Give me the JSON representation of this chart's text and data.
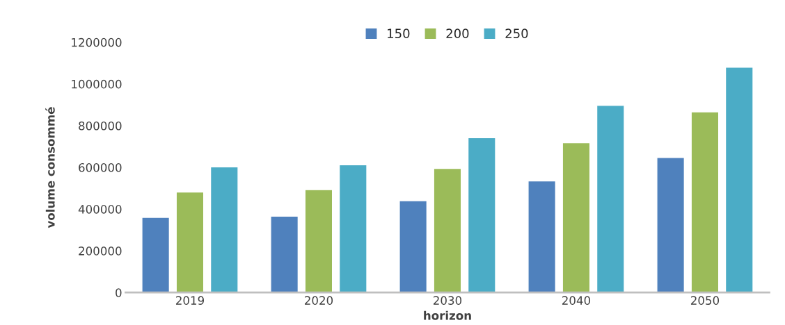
{
  "chart_data": {
    "type": "bar",
    "xlabel": "horizon",
    "ylabel": "volume consommé",
    "categories": [
      "2019",
      "2020",
      "2030",
      "2040",
      "2050"
    ],
    "series": [
      {
        "name": "150",
        "color": "#4f81bd",
        "values": [
          360000,
          366000,
          440000,
          535000,
          647000
        ]
      },
      {
        "name": "200",
        "color": "#9bbb59",
        "values": [
          482000,
          493000,
          595000,
          718000,
          866000
        ]
      },
      {
        "name": "250",
        "color": "#4bacc6",
        "values": [
          602000,
          612000,
          742000,
          897000,
          1080000
        ]
      }
    ],
    "ylim": [
      0,
      1200000
    ],
    "yticks": [
      0,
      200000,
      400000,
      600000,
      800000,
      1000000,
      1200000
    ],
    "grid": false,
    "legend": "top"
  }
}
